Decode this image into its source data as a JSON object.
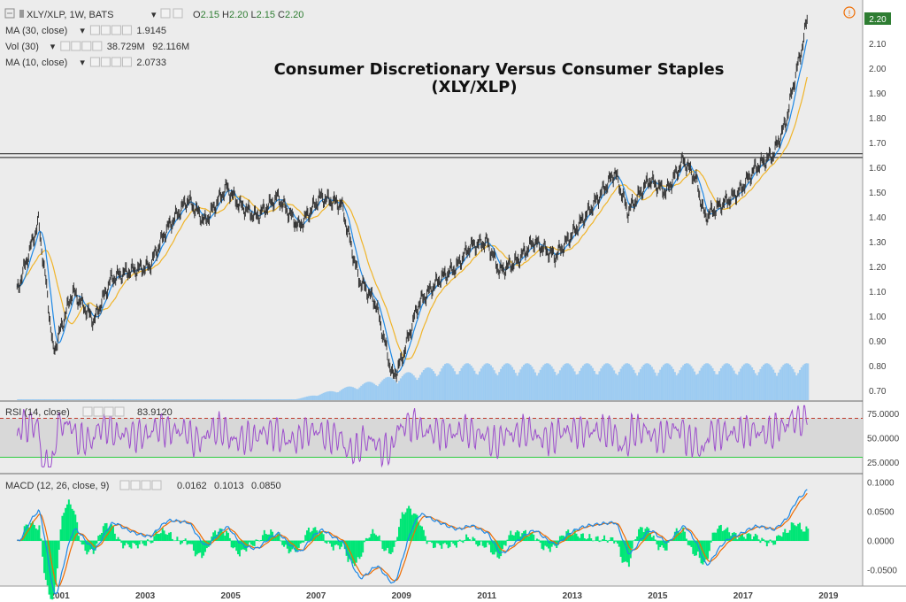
{
  "header": {
    "symbol": "XLY/XLP, 1W, BATS",
    "ohlc": [
      {
        "k": "O",
        "v": "2.15"
      },
      {
        "k": "H",
        "v": "2.20"
      },
      {
        "k": "L",
        "v": "2.15"
      },
      {
        "k": "C",
        "v": "2.20"
      }
    ]
  },
  "indicators": [
    {
      "label": "MA (30, close)",
      "values": [
        "1.9145"
      ],
      "colors": [
        "#f0b429"
      ]
    },
    {
      "label": "Vol (30)",
      "values": [
        "38.729M",
        "92.116M"
      ],
      "colors": [
        "#2e7d32",
        "#1e88e5"
      ]
    },
    {
      "label": "MA (10, close)",
      "values": [
        "2.0733"
      ],
      "colors": [
        "#1e88e5"
      ]
    }
  ],
  "last_price_label": "2.20",
  "chart_data": [
    {
      "type": "line",
      "title": "Consumer Discretionary Versus Consumer Staples\n(XLY/XLP)",
      "x_tick_labels": [
        "2001",
        "2003",
        "2005",
        "2007",
        "2009",
        "2011",
        "2013",
        "2015",
        "2017",
        "2019"
      ],
      "y_tick_labels": [
        "0.70",
        "0.80",
        "0.90",
        "1.00",
        "1.10",
        "1.20",
        "1.30",
        "1.40",
        "1.50",
        "1.60",
        "1.70",
        "1.80",
        "1.90",
        "2.00",
        "2.10",
        "2.20"
      ],
      "ylim": [
        0.66,
        2.24
      ],
      "xlim": [
        1999.6,
        2019.8
      ],
      "series": [
        {
          "name": "XLY/XLP",
          "x": [
            2000.0,
            2000.5,
            2000.7,
            2000.85,
            2001.3,
            2001.8,
            2002.2,
            2002.6,
            2003.1,
            2003.5,
            2004.0,
            2004.4,
            2004.9,
            2005.2,
            2005.6,
            2006.1,
            2006.6,
            2007.1,
            2007.6,
            2008.0,
            2008.4,
            2008.8,
            2009.0,
            2009.4,
            2009.9,
            2010.3,
            2010.6,
            2011.0,
            2011.3,
            2011.7,
            2012.1,
            2012.6,
            2013.0,
            2013.5,
            2014.0,
            2014.3,
            2014.8,
            2015.2,
            2015.6,
            2015.9,
            2016.1,
            2016.5,
            2016.9,
            2017.3,
            2017.7,
            2018.0,
            2018.2,
            2018.4,
            2018.5
          ],
          "values": [
            1.1,
            1.38,
            1.1,
            0.85,
            1.1,
            0.98,
            1.15,
            1.18,
            1.2,
            1.35,
            1.47,
            1.38,
            1.52,
            1.45,
            1.4,
            1.48,
            1.36,
            1.48,
            1.45,
            1.15,
            1.05,
            0.75,
            0.82,
            1.05,
            1.15,
            1.2,
            1.28,
            1.3,
            1.18,
            1.22,
            1.3,
            1.24,
            1.33,
            1.45,
            1.58,
            1.42,
            1.55,
            1.5,
            1.63,
            1.55,
            1.4,
            1.45,
            1.5,
            1.6,
            1.65,
            1.78,
            1.95,
            2.1,
            2.2
          ]
        },
        {
          "name": "MA (10, close)",
          "values_desc": "smoothed"
        },
        {
          "name": "MA (30, close)",
          "values_desc": "smoothed"
        }
      ],
      "horizontal_lines": [
        1.64,
        1.655
      ],
      "colors": {
        "price": "#333333",
        "ma10": "#1e88e5",
        "ma30": "#f0b429",
        "volume": "#64b5f6"
      }
    },
    {
      "type": "line",
      "title": "RSI (14, close)",
      "current_value": "83.9120",
      "y_tick_labels": [
        "25.0000",
        "50.0000",
        "75.0000"
      ],
      "ylim": [
        15,
        85
      ],
      "band": [
        30,
        70
      ],
      "colors": {
        "line": "#9c4dcc",
        "band": "#d8d8d8"
      }
    },
    {
      "type": "line",
      "title": "MACD (12, 26, close, 9)",
      "values_current": [
        "0.0162",
        "0.1013",
        "0.0850"
      ],
      "values_colors": [
        "#00c853",
        "#1e88e5",
        "#ef6c00"
      ],
      "y_tick_labels": [
        "-0.0500",
        "0.0000",
        "0.0500",
        "0.1000"
      ],
      "ylim": [
        -0.075,
        0.11
      ],
      "colors": {
        "histogram": "#00e676",
        "macd": "#1e88e5",
        "signal": "#ef6c00"
      }
    }
  ]
}
